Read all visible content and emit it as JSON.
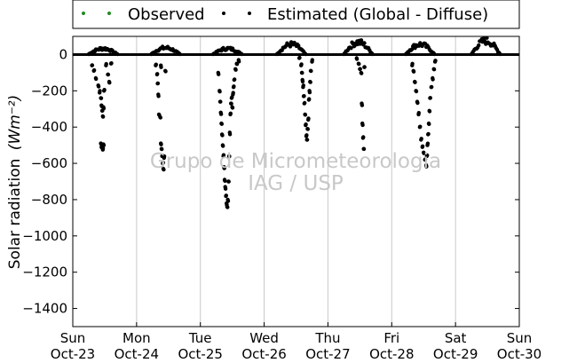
{
  "chart_data": {
    "type": "scatter",
    "ylabel": "Solar radiation",
    "ylabel_unit": "(Wm⁻²)",
    "ylim": [
      -1500,
      100
    ],
    "yticks": [
      0,
      -200,
      -400,
      -600,
      -800,
      -1000,
      -1200,
      -1400
    ],
    "xlim": [
      0,
      7
    ],
    "xticks": [
      {
        "day": "Sun",
        "date": "Oct-23",
        "x": 0
      },
      {
        "day": "Mon",
        "date": "Oct-24",
        "x": 1
      },
      {
        "day": "Tue",
        "date": "Oct-25",
        "x": 2
      },
      {
        "day": "Wed",
        "date": "Oct-26",
        "x": 3
      },
      {
        "day": "Thu",
        "date": "Oct-27",
        "x": 4
      },
      {
        "day": "Fri",
        "date": "Oct-28",
        "x": 5
      },
      {
        "day": "Sat",
        "date": "Oct-29",
        "x": 6
      },
      {
        "day": "Sun",
        "date": "Oct-30",
        "x": 7
      }
    ],
    "grid": "vertical",
    "legend_position": "top",
    "series": [
      {
        "name": "Observed",
        "color": "#228b22",
        "points": []
      },
      {
        "name": "Estimated (Global - Diffuse)",
        "color": "#000000",
        "days": [
          {
            "start": 0.25,
            "peak": 40,
            "dips": [
              [
                0.3,
                -60
              ],
              [
                0.33,
                -90
              ],
              [
                0.36,
                -130
              ],
              [
                0.4,
                -170
              ],
              [
                0.42,
                -210
              ],
              [
                0.44,
                -240
              ],
              [
                0.45,
                -280
              ],
              [
                0.46,
                -310
              ],
              [
                0.47,
                -340
              ],
              [
                0.48,
                -290
              ],
              [
                0.49,
                -200
              ],
              [
                0.44,
                -490
              ],
              [
                0.45,
                -510
              ],
              [
                0.46,
                -500
              ],
              [
                0.47,
                -525
              ],
              [
                0.48,
                -495
              ],
              [
                0.52,
                -60
              ],
              [
                0.55,
                -110
              ],
              [
                0.57,
                -150
              ],
              [
                0.6,
                -50
              ]
            ]
          },
          {
            "start": 1.23,
            "peak": 45,
            "dips": [
              [
                1.3,
                -60
              ],
              [
                1.32,
                -110
              ],
              [
                1.33,
                -160
              ],
              [
                1.34,
                -220
              ],
              [
                1.35,
                -330
              ],
              [
                1.37,
                -345
              ],
              [
                1.38,
                -490
              ],
              [
                1.39,
                -520
              ],
              [
                1.4,
                -560
              ],
              [
                1.41,
                -600
              ],
              [
                1.42,
                -630
              ],
              [
                1.43,
                -570
              ],
              [
                1.38,
                -60
              ],
              [
                1.45,
                -90
              ]
            ]
          },
          {
            "start": 2.2,
            "peak": 40,
            "dips": [
              [
                2.28,
                -100
              ],
              [
                2.3,
                -200
              ],
              [
                2.31,
                -260
              ],
              [
                2.32,
                -320
              ],
              [
                2.33,
                -380
              ],
              [
                2.34,
                -440
              ],
              [
                2.35,
                -500
              ],
              [
                2.36,
                -560
              ],
              [
                2.37,
                -620
              ],
              [
                2.38,
                -690
              ],
              [
                2.39,
                -730
              ],
              [
                2.4,
                -780
              ],
              [
                2.41,
                -820
              ],
              [
                2.42,
                -840
              ],
              [
                2.43,
                -800
              ],
              [
                2.44,
                -700
              ],
              [
                2.45,
                -560
              ],
              [
                2.46,
                -430
              ],
              [
                2.47,
                -330
              ],
              [
                2.48,
                -270
              ],
              [
                2.49,
                -240
              ],
              [
                2.5,
                -290
              ],
              [
                2.51,
                -220
              ],
              [
                2.52,
                -180
              ],
              [
                2.53,
                -140
              ],
              [
                2.55,
                -80
              ],
              [
                2.57,
                -50
              ],
              [
                2.6,
                -30
              ]
            ]
          },
          {
            "start": 3.2,
            "peak": 70,
            "dips": [
              [
                3.55,
                -20
              ],
              [
                3.58,
                -60
              ],
              [
                3.59,
                -100
              ],
              [
                3.6,
                -140
              ],
              [
                3.61,
                -180
              ],
              [
                3.62,
                -230
              ],
              [
                3.63,
                -270
              ],
              [
                3.64,
                -330
              ],
              [
                3.65,
                -390
              ],
              [
                3.66,
                -450
              ],
              [
                3.67,
                -470
              ],
              [
                3.68,
                -410
              ],
              [
                3.69,
                -360
              ],
              [
                3.7,
                -250
              ],
              [
                3.71,
                -200
              ],
              [
                3.72,
                -150
              ],
              [
                3.73,
                -90
              ],
              [
                3.75,
                -40
              ]
            ]
          },
          {
            "start": 4.25,
            "peak": 85,
            "dips": [
              [
                4.45,
                -20
              ],
              [
                4.48,
                -50
              ],
              [
                4.5,
                -80
              ],
              [
                4.52,
                -100
              ],
              [
                4.53,
                -270
              ],
              [
                4.54,
                -380
              ],
              [
                4.55,
                -460
              ],
              [
                4.56,
                -520
              ],
              [
                4.57,
                -70
              ]
            ]
          },
          {
            "start": 5.22,
            "peak": 70,
            "dips": [
              [
                5.32,
                -60
              ],
              [
                5.34,
                -90
              ],
              [
                5.36,
                -150
              ],
              [
                5.38,
                -200
              ],
              [
                5.4,
                -260
              ],
              [
                5.42,
                -330
              ],
              [
                5.44,
                -400
              ],
              [
                5.46,
                -470
              ],
              [
                5.48,
                -510
              ],
              [
                5.5,
                -540
              ],
              [
                5.52,
                -580
              ],
              [
                5.54,
                -610
              ],
              [
                5.55,
                -560
              ],
              [
                5.56,
                -500
              ],
              [
                5.57,
                -440
              ],
              [
                5.58,
                -380
              ],
              [
                5.59,
                -310
              ],
              [
                5.6,
                -240
              ],
              [
                5.62,
                -180
              ],
              [
                5.64,
                -130
              ],
              [
                5.66,
                -80
              ],
              [
                5.68,
                -40
              ]
            ]
          },
          {
            "start": 6.25,
            "peak": 95,
            "dips": []
          }
        ]
      }
    ]
  },
  "watermark": {
    "line1": "Grupo de Micrometeorologia",
    "line2": "IAG / USP"
  }
}
